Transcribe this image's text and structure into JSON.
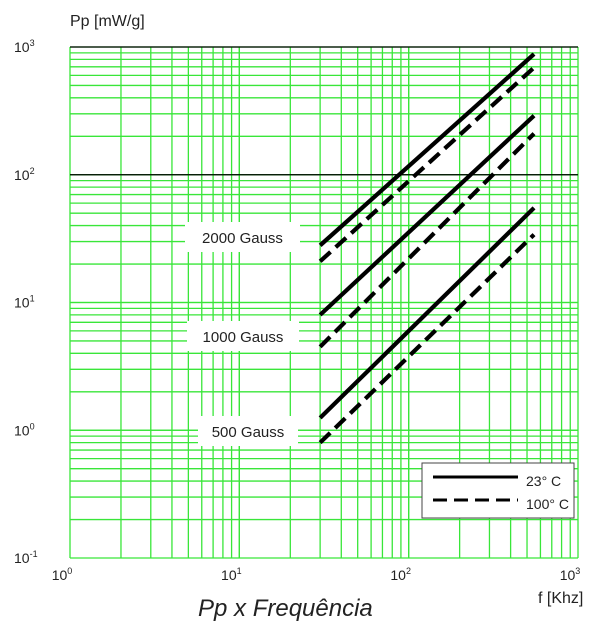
{
  "chart_data": {
    "type": "line",
    "title": "Pp x Frequência",
    "xlabel": "f [Khz]",
    "ylabel": "Pp [mW/g]",
    "x_scale": "log",
    "y_scale": "log",
    "xlim": [
      1,
      1000
    ],
    "ylim": [
      0.1,
      1000
    ],
    "x_ticks": [
      {
        "base": "10",
        "exp": "0"
      },
      {
        "base": "10",
        "exp": "1"
      },
      {
        "base": "10",
        "exp": "2"
      },
      {
        "base": "10",
        "exp": "3"
      }
    ],
    "y_ticks": [
      {
        "base": "10",
        "exp": "3"
      },
      {
        "base": "10",
        "exp": "2"
      },
      {
        "base": "10",
        "exp": "1"
      },
      {
        "base": "10",
        "exp": "0"
      },
      {
        "base": "10",
        "exp": "-1"
      }
    ],
    "grid": true,
    "legend": {
      "placement": "bottom-right",
      "entries": [
        {
          "label": "23° C",
          "style": "solid"
        },
        {
          "label": "100° C",
          "style": "dashed"
        }
      ]
    },
    "group_labels": [
      "2000 Gauss",
      "1000 Gauss",
      "500 Gauss"
    ],
    "series": [
      {
        "group": "2000 Gauss",
        "temp": "23° C",
        "style": "solid",
        "x": [
          30,
          550
        ],
        "y": [
          28,
          880
        ]
      },
      {
        "group": "2000 Gauss",
        "temp": "100° C",
        "style": "dashed",
        "x": [
          30,
          550
        ],
        "y": [
          21,
          690
        ]
      },
      {
        "group": "1000 Gauss",
        "temp": "23° C",
        "style": "solid",
        "x": [
          30,
          550
        ],
        "y": [
          8,
          290
        ]
      },
      {
        "group": "1000 Gauss",
        "temp": "100° C",
        "style": "dashed",
        "x": [
          30,
          550
        ],
        "y": [
          4.5,
          210
        ]
      },
      {
        "group": "500 Gauss",
        "temp": "23° C",
        "style": "solid",
        "x": [
          30,
          550
        ],
        "y": [
          1.25,
          55
        ]
      },
      {
        "group": "500 Gauss",
        "temp": "100° C",
        "style": "dashed",
        "x": [
          30,
          550
        ],
        "y": [
          0.8,
          34
        ]
      }
    ],
    "colors": {
      "grid": "#39e639",
      "major_line": "#000000",
      "series": "#000000"
    }
  }
}
